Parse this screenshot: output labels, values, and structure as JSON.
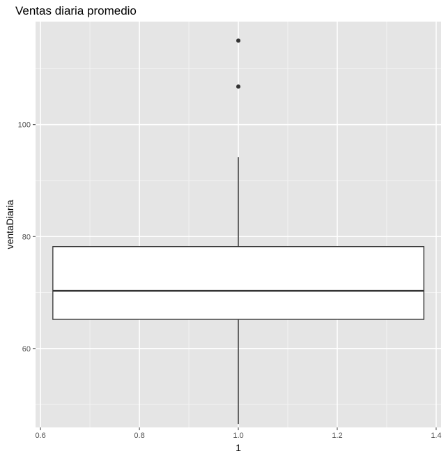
{
  "chart_data": {
    "type": "boxplot",
    "title": "Ventas diaria promedio",
    "xlabel": "1",
    "ylabel": "ventaDiaria",
    "xlim": [
      0.59,
      1.41
    ],
    "ylim": [
      45.9,
      118.4
    ],
    "x_ticks": [
      0.6,
      0.8,
      1.0,
      1.2,
      1.4
    ],
    "x_tick_labels": [
      "0.6",
      "0.8",
      "1.0",
      "1.2",
      "1.4"
    ],
    "y_ticks": [
      60,
      80,
      100
    ],
    "y_tick_labels": [
      "60",
      "80",
      "100"
    ],
    "grid": true,
    "box": {
      "x": 1.0,
      "x_start": 0.625,
      "x_end": 1.375,
      "whisker_low": 46.5,
      "q1": 65.2,
      "median": 70.3,
      "q3": 78.2,
      "whisker_high": 94.2,
      "outliers": [
        106.8,
        115.0
      ]
    }
  },
  "colors": {
    "panel_background": "#e5e5e5",
    "grid_major": "#ffffff",
    "grid_minor": "#f2f2f2",
    "box_fill": "#ffffff",
    "box_stroke": "#333333",
    "point": "#333333",
    "tick": "#333333"
  }
}
